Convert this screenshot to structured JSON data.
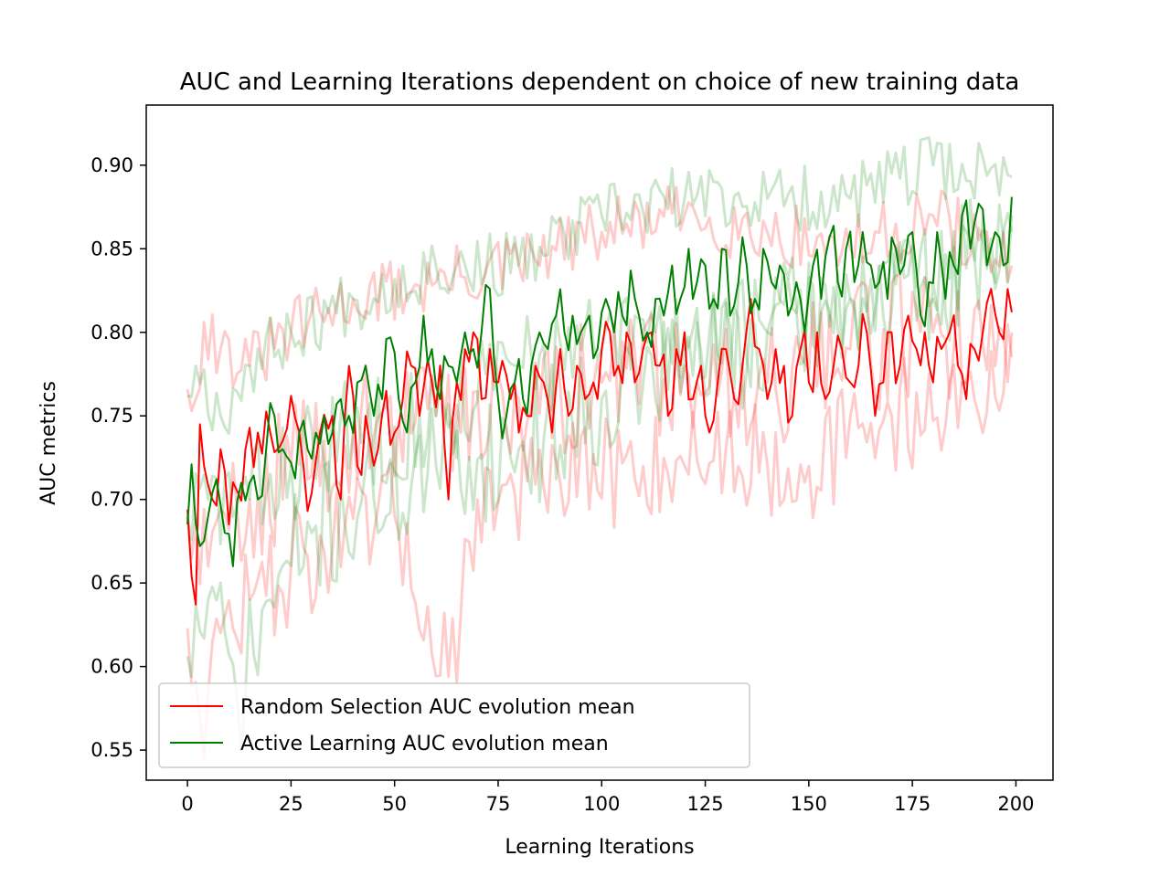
{
  "chart_data": {
    "type": "line",
    "title": "AUC and Learning Iterations dependent on choice of new training data",
    "xlabel": "Learning Iterations",
    "ylabel": "AUC metrics",
    "xlim": [
      -9.95,
      208.95
    ],
    "ylim": [
      0.532,
      0.936
    ],
    "xticks": [
      0,
      25,
      50,
      75,
      100,
      125,
      150,
      175,
      200
    ],
    "yticks": [
      0.55,
      0.6,
      0.65,
      0.7,
      0.75,
      0.8,
      0.85,
      0.9
    ],
    "ytick_labels": [
      "0.55",
      "0.60",
      "0.65",
      "0.70",
      "0.75",
      "0.80",
      "0.85",
      "0.90"
    ],
    "xtick_labels": [
      "0",
      "25",
      "50",
      "75",
      "100",
      "125",
      "150",
      "175",
      "200"
    ],
    "grid": false,
    "legend_position": "lower-left",
    "legend": [
      {
        "label": "Random Selection AUC evolution mean",
        "color": "#ff0000"
      },
      {
        "label": "Active Learning AUC evolution mean",
        "color": "#008000"
      }
    ],
    "x_range": [
      0,
      199
    ],
    "series": [
      {
        "name": "Random Selection AUC evolution mean",
        "color": "#ff0000",
        "role": "mean",
        "anchors": [
          [
            0,
            0.694
          ],
          [
            2,
            0.637
          ],
          [
            3,
            0.745
          ],
          [
            6,
            0.7
          ],
          [
            8,
            0.73
          ],
          [
            10,
            0.685
          ],
          [
            12,
            0.705
          ],
          [
            14,
            0.73
          ],
          [
            17,
            0.74
          ],
          [
            20,
            0.74
          ],
          [
            23,
            0.735
          ],
          [
            25,
            0.762
          ],
          [
            28,
            0.72
          ],
          [
            29,
            0.693
          ],
          [
            32,
            0.74
          ],
          [
            35,
            0.75
          ],
          [
            37,
            0.7
          ],
          [
            39,
            0.78
          ],
          [
            41,
            0.72
          ],
          [
            43,
            0.75
          ],
          [
            46,
            0.73
          ],
          [
            48,
            0.765
          ],
          [
            50,
            0.74
          ],
          [
            52,
            0.76
          ],
          [
            54,
            0.78
          ],
          [
            56,
            0.75
          ],
          [
            59,
            0.77
          ],
          [
            61,
            0.78
          ],
          [
            63,
            0.7
          ],
          [
            65,
            0.77
          ],
          [
            67,
            0.79
          ],
          [
            69,
            0.8
          ],
          [
            71,
            0.76
          ],
          [
            73,
            0.79
          ],
          [
            75,
            0.77
          ],
          [
            78,
            0.76
          ],
          [
            80,
            0.74
          ],
          [
            82,
            0.75
          ],
          [
            84,
            0.78
          ],
          [
            86,
            0.77
          ],
          [
            88,
            0.74
          ],
          [
            90,
            0.79
          ],
          [
            92,
            0.75
          ],
          [
            94,
            0.78
          ],
          [
            96,
            0.76
          ],
          [
            98,
            0.77
          ],
          [
            100,
            0.79
          ],
          [
            102,
            0.8
          ],
          [
            104,
            0.78
          ],
          [
            106,
            0.8
          ],
          [
            108,
            0.77
          ],
          [
            110,
            0.79
          ],
          [
            112,
            0.8
          ],
          [
            114,
            0.78
          ],
          [
            116,
            0.75
          ],
          [
            118,
            0.79
          ],
          [
            120,
            0.8
          ],
          [
            122,
            0.76
          ],
          [
            124,
            0.78
          ],
          [
            126,
            0.74
          ],
          [
            128,
            0.77
          ],
          [
            130,
            0.79
          ],
          [
            132,
            0.76
          ],
          [
            134,
            0.78
          ],
          [
            136,
            0.82
          ],
          [
            138,
            0.79
          ],
          [
            140,
            0.76
          ],
          [
            142,
            0.79
          ],
          [
            144,
            0.78
          ],
          [
            146,
            0.75
          ],
          [
            148,
            0.79
          ],
          [
            150,
            0.77
          ],
          [
            152,
            0.8
          ],
          [
            154,
            0.76
          ],
          [
            156,
            0.78
          ],
          [
            158,
            0.79
          ],
          [
            160,
            0.77
          ],
          [
            162,
            0.78
          ],
          [
            164,
            0.8
          ],
          [
            166,
            0.75
          ],
          [
            168,
            0.77
          ],
          [
            170,
            0.8
          ],
          [
            172,
            0.78
          ],
          [
            174,
            0.81
          ],
          [
            176,
            0.79
          ],
          [
            178,
            0.8
          ],
          [
            180,
            0.77
          ],
          [
            182,
            0.79
          ],
          [
            184,
            0.8
          ],
          [
            186,
            0.78
          ],
          [
            188,
            0.76
          ],
          [
            190,
            0.79
          ],
          [
            192,
            0.8
          ],
          [
            194,
            0.826
          ],
          [
            196,
            0.8
          ],
          [
            198,
            0.826
          ],
          [
            199,
            0.812
          ]
        ],
        "noise": 0.022,
        "seed": 11
      },
      {
        "name": "Active Learning AUC evolution mean",
        "color": "#008000",
        "role": "mean",
        "anchors": [
          [
            0,
            0.685
          ],
          [
            1,
            0.721
          ],
          [
            3,
            0.672
          ],
          [
            5,
            0.69
          ],
          [
            7,
            0.712
          ],
          [
            9,
            0.68
          ],
          [
            11,
            0.66
          ],
          [
            13,
            0.71
          ],
          [
            15,
            0.71
          ],
          [
            17,
            0.7
          ],
          [
            19,
            0.73
          ],
          [
            21,
            0.75
          ],
          [
            23,
            0.73
          ],
          [
            25,
            0.722
          ],
          [
            27,
            0.74
          ],
          [
            29,
            0.73
          ],
          [
            31,
            0.74
          ],
          [
            33,
            0.75
          ],
          [
            35,
            0.74
          ],
          [
            37,
            0.76
          ],
          [
            39,
            0.75
          ],
          [
            41,
            0.77
          ],
          [
            43,
            0.78
          ],
          [
            45,
            0.75
          ],
          [
            47,
            0.76
          ],
          [
            49,
            0.797
          ],
          [
            51,
            0.76
          ],
          [
            53,
            0.74
          ],
          [
            55,
            0.77
          ],
          [
            57,
            0.81
          ],
          [
            59,
            0.79
          ],
          [
            61,
            0.76
          ],
          [
            63,
            0.78
          ],
          [
            65,
            0.77
          ],
          [
            67,
            0.8
          ],
          [
            69,
            0.79
          ],
          [
            71,
            0.8
          ],
          [
            73,
            0.826
          ],
          [
            75,
            0.76
          ],
          [
            77,
            0.75
          ],
          [
            79,
            0.77
          ],
          [
            81,
            0.76
          ],
          [
            83,
            0.78
          ],
          [
            85,
            0.8
          ],
          [
            87,
            0.79
          ],
          [
            89,
            0.81
          ],
          [
            91,
            0.8
          ],
          [
            93,
            0.81
          ],
          [
            95,
            0.8
          ],
          [
            97,
            0.81
          ],
          [
            99,
            0.79
          ],
          [
            101,
            0.82
          ],
          [
            103,
            0.8
          ],
          [
            105,
            0.81
          ],
          [
            107,
            0.837
          ],
          [
            109,
            0.81
          ],
          [
            111,
            0.8
          ],
          [
            113,
            0.82
          ],
          [
            115,
            0.81
          ],
          [
            117,
            0.84
          ],
          [
            119,
            0.82
          ],
          [
            121,
            0.85
          ],
          [
            123,
            0.83
          ],
          [
            125,
            0.84
          ],
          [
            127,
            0.82
          ],
          [
            129,
            0.85
          ],
          [
            131,
            0.81
          ],
          [
            133,
            0.83
          ],
          [
            135,
            0.84
          ],
          [
            137,
            0.82
          ],
          [
            139,
            0.85
          ],
          [
            141,
            0.83
          ],
          [
            143,
            0.84
          ],
          [
            145,
            0.81
          ],
          [
            147,
            0.83
          ],
          [
            149,
            0.8
          ],
          [
            151,
            0.84
          ],
          [
            153,
            0.82
          ],
          [
            155,
            0.857
          ],
          [
            157,
            0.83
          ],
          [
            159,
            0.85
          ],
          [
            161,
            0.83
          ],
          [
            163,
            0.86
          ],
          [
            165,
            0.84
          ],
          [
            167,
            0.83
          ],
          [
            169,
            0.82
          ],
          [
            171,
            0.85
          ],
          [
            173,
            0.84
          ],
          [
            175,
            0.86
          ],
          [
            177,
            0.81
          ],
          [
            179,
            0.83
          ],
          [
            181,
            0.86
          ],
          [
            183,
            0.82
          ],
          [
            185,
            0.84
          ],
          [
            187,
            0.87
          ],
          [
            189,
            0.85
          ],
          [
            191,
            0.877
          ],
          [
            193,
            0.84
          ],
          [
            195,
            0.86
          ],
          [
            197,
            0.84
          ],
          [
            199,
            0.881
          ]
        ],
        "noise": 0.022,
        "seed": 23
      },
      {
        "role": "run",
        "color": "#ff0000",
        "opacity": 0.2,
        "anchors": [
          [
            0,
            0.766
          ],
          [
            2,
            0.76
          ],
          [
            4,
            0.806
          ],
          [
            8,
            0.79
          ],
          [
            15,
            0.78
          ],
          [
            25,
            0.8
          ],
          [
            40,
            0.82
          ],
          [
            60,
            0.83
          ],
          [
            80,
            0.84
          ],
          [
            100,
            0.86
          ],
          [
            120,
            0.87
          ],
          [
            140,
            0.86
          ],
          [
            160,
            0.85
          ],
          [
            180,
            0.87
          ],
          [
            199,
            0.84
          ]
        ],
        "noise": 0.02,
        "seed": 31
      },
      {
        "role": "run",
        "color": "#ff0000",
        "opacity": 0.2,
        "anchors": [
          [
            0,
            0.623
          ],
          [
            3,
            0.57
          ],
          [
            8,
            0.62
          ],
          [
            15,
            0.64
          ],
          [
            25,
            0.66
          ],
          [
            35,
            0.67
          ],
          [
            50,
            0.69
          ],
          [
            63,
            0.594
          ],
          [
            70,
            0.7
          ],
          [
            90,
            0.71
          ],
          [
            110,
            0.72
          ],
          [
            130,
            0.73
          ],
          [
            150,
            0.72
          ],
          [
            170,
            0.75
          ],
          [
            190,
            0.76
          ],
          [
            199,
            0.785
          ]
        ],
        "noise": 0.035,
        "seed": 47
      },
      {
        "role": "run",
        "color": "#ff0000",
        "opacity": 0.2,
        "anchors": [
          [
            0,
            0.69
          ],
          [
            5,
            0.66
          ],
          [
            15,
            0.7
          ],
          [
            25,
            0.72
          ],
          [
            40,
            0.74
          ],
          [
            60,
            0.75
          ],
          [
            80,
            0.76
          ],
          [
            100,
            0.77
          ],
          [
            120,
            0.78
          ],
          [
            140,
            0.77
          ],
          [
            160,
            0.79
          ],
          [
            180,
            0.8
          ],
          [
            199,
            0.8
          ]
        ],
        "noise": 0.04,
        "seed": 59
      },
      {
        "role": "run",
        "color": "#008000",
        "opacity": 0.2,
        "anchors": [
          [
            0,
            0.762
          ],
          [
            2,
            0.78
          ],
          [
            8,
            0.75
          ],
          [
            15,
            0.78
          ],
          [
            25,
            0.8
          ],
          [
            40,
            0.82
          ],
          [
            60,
            0.84
          ],
          [
            80,
            0.84
          ],
          [
            100,
            0.87
          ],
          [
            120,
            0.88
          ],
          [
            140,
            0.88
          ],
          [
            160,
            0.88
          ],
          [
            180,
            0.9
          ],
          [
            199,
            0.893
          ]
        ],
        "noise": 0.02,
        "seed": 67
      },
      {
        "role": "run",
        "color": "#008000",
        "opacity": 0.2,
        "anchors": [
          [
            0,
            0.606
          ],
          [
            5,
            0.64
          ],
          [
            12,
            0.58
          ],
          [
            20,
            0.64
          ],
          [
            30,
            0.68
          ],
          [
            45,
            0.7
          ],
          [
            60,
            0.72
          ],
          [
            80,
            0.73
          ],
          [
            100,
            0.76
          ],
          [
            120,
            0.78
          ],
          [
            140,
            0.8
          ],
          [
            160,
            0.82
          ],
          [
            180,
            0.82
          ],
          [
            199,
            0.87
          ]
        ],
        "noise": 0.04,
        "seed": 71
      },
      {
        "role": "run",
        "color": "#008000",
        "opacity": 0.2,
        "anchors": [
          [
            0,
            0.69
          ],
          [
            5,
            0.7
          ],
          [
            15,
            0.7
          ],
          [
            25,
            0.72
          ],
          [
            40,
            0.74
          ],
          [
            60,
            0.75
          ],
          [
            80,
            0.78
          ],
          [
            100,
            0.79
          ],
          [
            120,
            0.8
          ],
          [
            140,
            0.8
          ],
          [
            160,
            0.82
          ],
          [
            180,
            0.83
          ],
          [
            199,
            0.86
          ]
        ],
        "noise": 0.035,
        "seed": 83
      }
    ]
  }
}
